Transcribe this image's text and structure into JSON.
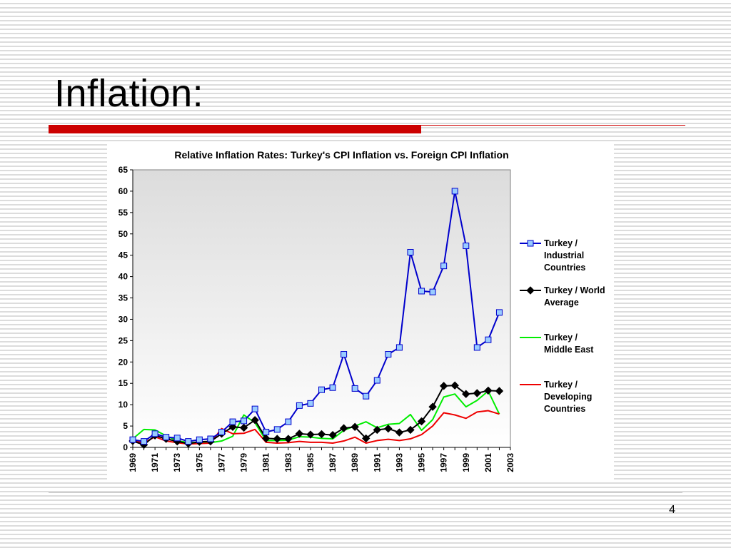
{
  "slide": {
    "title": "Inflation:",
    "page_number": "4",
    "accent_color": "#cc0000"
  },
  "chart_data": {
    "type": "line",
    "title": "Relative Inflation Rates: Turkey's CPI Inflation vs. Foreign CPI Inflation",
    "xlabel": "",
    "ylabel": "",
    "ylim": [
      0,
      65
    ],
    "ytick_step": 5,
    "x": [
      1969,
      1970,
      1971,
      1972,
      1973,
      1974,
      1975,
      1976,
      1977,
      1978,
      1979,
      1980,
      1981,
      1982,
      1983,
      1984,
      1985,
      1986,
      1987,
      1988,
      1989,
      1990,
      1991,
      1992,
      1993,
      1994,
      1995,
      1996,
      1997,
      1998,
      1999,
      2000,
      2001,
      2002
    ],
    "x_tick_labels": [
      "1969",
      "1971",
      "1973",
      "1975",
      "1977",
      "1979",
      "1981",
      "1983",
      "1985",
      "1987",
      "1989",
      "1991",
      "1993",
      "1995",
      "1997",
      "1999",
      "2001",
      "2003"
    ],
    "plot_background": "gray gradient",
    "legend_position": "right",
    "series": [
      {
        "name": "Turkey / Industrial Countries",
        "legend_lines": [
          "Turkey /",
          "Industrial",
          "Countries"
        ],
        "color": "#0000cc",
        "marker": "square",
        "marker_fill": "#99ccff",
        "values": [
          1.8,
          1.4,
          3.2,
          2.4,
          2.2,
          1.4,
          1.8,
          2.0,
          3.6,
          6.0,
          6.2,
          9.0,
          3.6,
          4.2,
          6.0,
          9.8,
          10.3,
          13.5,
          14.0,
          21.8,
          13.8,
          12.0,
          15.7,
          21.8,
          23.4,
          45.7,
          36.6,
          36.4,
          42.5,
          60.0,
          47.2,
          23.4,
          25.2,
          31.6
        ]
      },
      {
        "name": "Turkey / World Average",
        "legend_lines": [
          "Turkey / World",
          "Average"
        ],
        "color": "#000000",
        "marker": "diamond",
        "marker_fill": "#000000",
        "values": [
          1.5,
          0.6,
          2.8,
          2.0,
          1.4,
          0.9,
          1.3,
          1.4,
          3.2,
          4.8,
          4.6,
          6.4,
          2.1,
          2.0,
          2.0,
          3.2,
          3.0,
          3.1,
          2.9,
          4.5,
          4.8,
          2.1,
          4.1,
          4.4,
          3.5,
          4.1,
          6.1,
          9.5,
          14.4,
          14.5,
          12.5,
          12.7,
          13.3,
          13.2
        ]
      },
      {
        "name": "Turkey / Middle East",
        "legend_lines": [
          "Turkey /",
          "Middle East"
        ],
        "color": "#00ee00",
        "marker": "none",
        "values": [
          2.0,
          4.2,
          4.1,
          2.7,
          1.6,
          1.1,
          1.2,
          1.1,
          1.5,
          2.6,
          7.6,
          5.8,
          1.6,
          1.6,
          1.7,
          2.5,
          2.4,
          2.1,
          2.0,
          4.0,
          5.0,
          6.0,
          4.6,
          5.4,
          5.6,
          7.7,
          4.0,
          6.5,
          11.8,
          12.5,
          9.5,
          11.0,
          13.2,
          7.8
        ]
      },
      {
        "name": "Turkey / Developing Countries",
        "legend_lines": [
          "Turkey /",
          "Developing",
          "Countries"
        ],
        "color": "#ee0000",
        "marker": "none",
        "values": [
          1.6,
          1.0,
          2.5,
          1.5,
          1.1,
          0.8,
          0.9,
          1.0,
          4.4,
          3.2,
          3.3,
          4.2,
          1.2,
          1.0,
          1.1,
          1.4,
          1.2,
          1.2,
          1.0,
          1.5,
          2.4,
          1.0,
          1.6,
          1.9,
          1.6,
          2.0,
          3.0,
          5.0,
          8.1,
          7.6,
          6.8,
          8.3,
          8.6,
          7.8
        ]
      }
    ]
  }
}
